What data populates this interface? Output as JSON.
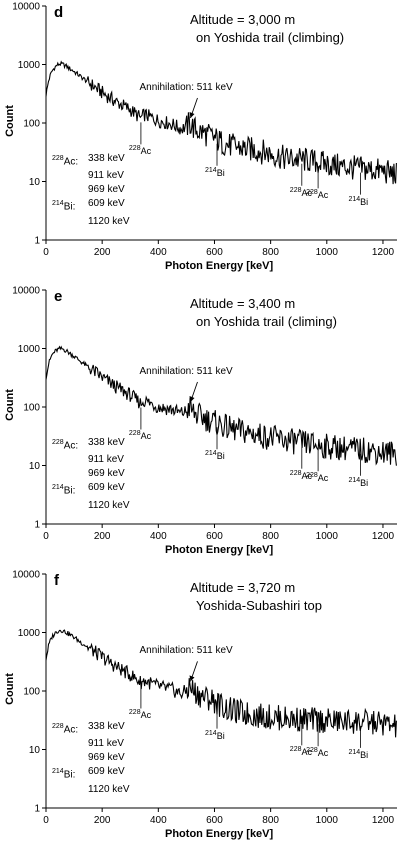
{
  "chart_data": [
    {
      "type": "line",
      "panel_letter": "d",
      "title": "Altitude = 3,000 m",
      "subtitle": "on Yoshida trail (climbing)",
      "xlabel": "Photon Energy [keV]",
      "ylabel": "Count",
      "xlim": [
        0,
        1250
      ],
      "ylim": [
        1,
        10000
      ],
      "yscale": "log",
      "xticks": [
        "0",
        "200",
        "400",
        "600",
        "800",
        "1000",
        "1200"
      ],
      "yticks": [
        "1",
        "10",
        "100",
        "1000",
        "10000"
      ],
      "annihilation_label": "Annihilation: 511 keV",
      "peaks": [
        {
          "isotope": "228",
          "element": "Ac",
          "energy": 338
        },
        {
          "isotope": "214",
          "element": "Bi",
          "energy": 609
        },
        {
          "isotope": "228",
          "element": "Ac",
          "energy": 911
        },
        {
          "isotope": "228",
          "element": "Ac",
          "energy": 969
        },
        {
          "isotope": "214",
          "element": "Bi",
          "energy": 1120
        }
      ],
      "legend_lines": [
        {
          "iso": "228",
          "el": "Ac:",
          "val": "338 keV"
        },
        {
          "iso": "",
          "el": "",
          "val": "911 keV"
        },
        {
          "iso": "",
          "el": "",
          "val": "969 keV"
        },
        {
          "iso": "214",
          "el": "Bi:",
          "val": "609 keV"
        },
        {
          "iso": "",
          "el": "",
          "val": "1120 keV"
        }
      ],
      "series": [
        {
          "x": [
            0,
            10,
            20,
            30,
            40,
            50,
            60,
            70,
            80,
            100,
            120,
            150,
            180,
            200,
            250,
            300,
            338,
            350,
            400,
            450,
            480,
            500,
            511,
            530,
            560,
            600,
            620,
            650,
            700,
            750,
            800,
            850,
            900,
            950,
            1000,
            1050,
            1100,
            1150,
            1200,
            1250
          ],
          "y": [
            300,
            550,
            750,
            880,
            980,
            1030,
            1000,
            950,
            880,
            760,
            640,
            500,
            390,
            330,
            230,
            170,
            120,
            140,
            110,
            95,
            80,
            85,
            100,
            78,
            68,
            55,
            48,
            42,
            37,
            34,
            30,
            25,
            24,
            22,
            20,
            18,
            17,
            16,
            15,
            13
          ]
        }
      ]
    },
    {
      "type": "line",
      "panel_letter": "e",
      "title": "Altitude = 3,400 m",
      "subtitle": "on Yoshida trail (climing)",
      "xlabel": "Photon Energy [keV]",
      "ylabel": "Count",
      "xlim": [
        0,
        1250
      ],
      "ylim": [
        1,
        10000
      ],
      "yscale": "log",
      "xticks": [
        "0",
        "200",
        "400",
        "600",
        "800",
        "1000",
        "1200"
      ],
      "yticks": [
        "1",
        "10",
        "100",
        "1000",
        "10000"
      ],
      "annihilation_label": "Annihilation: 511 keV",
      "peaks": [
        {
          "isotope": "228",
          "element": "Ac",
          "energy": 338
        },
        {
          "isotope": "214",
          "element": "Bi",
          "energy": 609
        },
        {
          "isotope": "228",
          "element": "Ac",
          "energy": 911
        },
        {
          "isotope": "228",
          "element": "Ac",
          "energy": 969
        },
        {
          "isotope": "214",
          "element": "Bi",
          "energy": 1120
        }
      ],
      "legend_lines": [
        {
          "iso": "228",
          "el": "Ac:",
          "val": "338 keV"
        },
        {
          "iso": "",
          "el": "",
          "val": "911 keV"
        },
        {
          "iso": "",
          "el": "",
          "val": "969 keV"
        },
        {
          "iso": "214",
          "el": "Bi:",
          "val": "609 keV"
        },
        {
          "iso": "",
          "el": "",
          "val": "1120 keV"
        }
      ],
      "series": [
        {
          "x": [
            0,
            10,
            20,
            30,
            40,
            50,
            60,
            70,
            80,
            100,
            120,
            150,
            180,
            200,
            250,
            300,
            338,
            350,
            400,
            450,
            480,
            500,
            511,
            530,
            560,
            600,
            620,
            650,
            700,
            750,
            800,
            850,
            900,
            950,
            1000,
            1050,
            1100,
            1150,
            1200,
            1250
          ],
          "y": [
            320,
            560,
            760,
            870,
            950,
            990,
            980,
            930,
            860,
            740,
            620,
            480,
            380,
            320,
            220,
            160,
            115,
            130,
            100,
            90,
            78,
            85,
            100,
            75,
            66,
            55,
            50,
            43,
            38,
            34,
            30,
            27,
            25,
            23,
            21,
            20,
            19,
            18,
            17,
            16
          ]
        }
      ]
    },
    {
      "type": "line",
      "panel_letter": "f",
      "title": "Altitude = 3,720 m",
      "subtitle": "Yoshida-Subashiri top",
      "xlabel": "Photon Energy [keV]",
      "ylabel": "Count",
      "xlim": [
        0,
        1250
      ],
      "ylim": [
        1,
        10000
      ],
      "yscale": "log",
      "xticks": [
        "0",
        "200",
        "400",
        "600",
        "800",
        "1000",
        "1200"
      ],
      "yticks": [
        "1",
        "10",
        "100",
        "1000",
        "10000"
      ],
      "annihilation_label": "Annihilation: 511 keV",
      "peaks": [
        {
          "isotope": "228",
          "element": "Ac",
          "energy": 338
        },
        {
          "isotope": "214",
          "element": "Bi",
          "energy": 609
        },
        {
          "isotope": "228",
          "element": "Ac",
          "energy": 911
        },
        {
          "isotope": "228",
          "element": "Ac",
          "energy": 969
        },
        {
          "isotope": "214",
          "element": "Bi",
          "energy": 1120
        }
      ],
      "legend_lines": [
        {
          "iso": "228",
          "el": "Ac:",
          "val": "338 keV"
        },
        {
          "iso": "",
          "el": "",
          "val": "911 keV"
        },
        {
          "iso": "",
          "el": "",
          "val": "969 keV"
        },
        {
          "iso": "214",
          "el": "Bi:",
          "val": "609 keV"
        },
        {
          "iso": "",
          "el": "",
          "val": "1120 keV"
        }
      ],
      "series": [
        {
          "x": [
            0,
            10,
            20,
            30,
            40,
            50,
            60,
            70,
            80,
            100,
            120,
            150,
            180,
            200,
            250,
            300,
            338,
            350,
            400,
            450,
            480,
            500,
            511,
            530,
            560,
            600,
            620,
            650,
            700,
            750,
            800,
            850,
            900,
            950,
            1000,
            1050,
            1100,
            1150,
            1200,
            1250
          ],
          "y": [
            350,
            620,
            820,
            950,
            1050,
            1100,
            1080,
            1020,
            950,
            830,
            700,
            560,
            440,
            380,
            260,
            190,
            140,
            150,
            120,
            105,
            90,
            100,
            120,
            95,
            80,
            68,
            58,
            48,
            42,
            38,
            36,
            34,
            33,
            32,
            31,
            30,
            30,
            29,
            28,
            24
          ]
        }
      ]
    }
  ]
}
